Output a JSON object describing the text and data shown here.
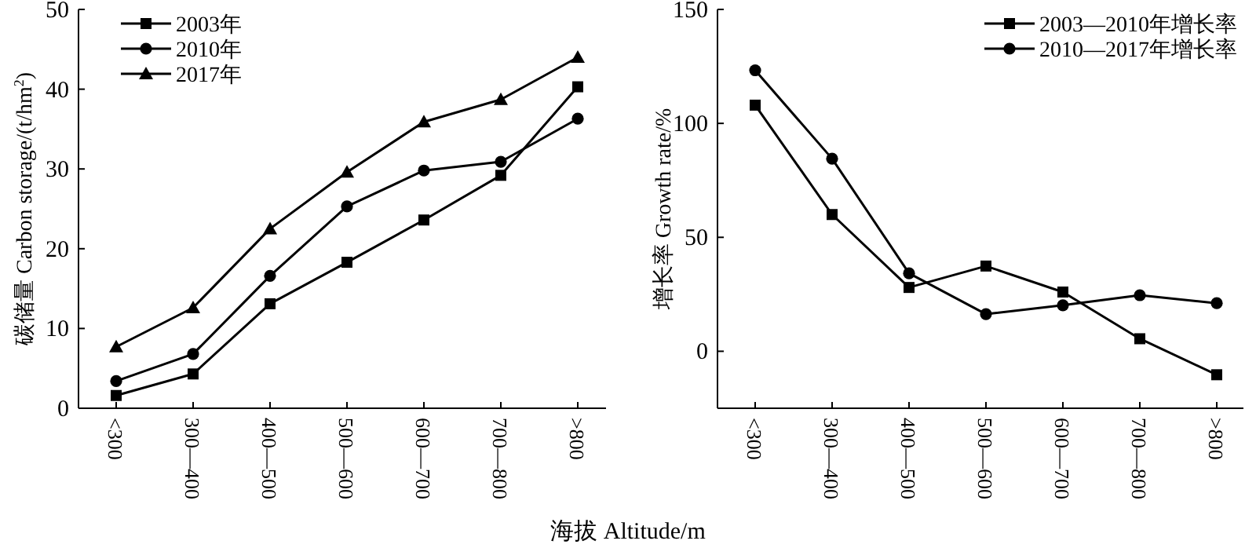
{
  "chart_data": [
    {
      "type": "line",
      "ylabel": "碳储量 Carbon storage/(t/hm$^{2}$)",
      "xlabel": "海拔 Altitude/m",
      "categories": [
        "<300",
        "300—400",
        "400—500",
        "500—600",
        "600—700",
        "700—800",
        ">800"
      ],
      "ylim": [
        0,
        50
      ],
      "yticks": [
        0,
        10,
        20,
        30,
        40,
        50
      ],
      "grid": false,
      "legend": "top left",
      "series": [
        {
          "name": "2003年",
          "color": "#000000",
          "marker": "square",
          "values": [
            1.6,
            4.3,
            13.1,
            18.3,
            23.6,
            29.2,
            40.3
          ]
        },
        {
          "name": "2010年",
          "color": "#000000",
          "marker": "circle",
          "values": [
            3.4,
            6.8,
            16.6,
            25.3,
            29.8,
            30.9,
            36.3
          ]
        },
        {
          "name": "2017年",
          "color": "#000000",
          "marker": "triangle",
          "values": [
            7.7,
            12.6,
            22.5,
            29.6,
            35.9,
            38.7,
            44.0
          ]
        }
      ]
    },
    {
      "type": "line",
      "ylabel": "增长率 Growth rate/%",
      "categories": [
        "<300",
        "300—400",
        "400—500",
        "500—600",
        "600—700",
        "700—800",
        ">800"
      ],
      "ylim": [
        -25,
        150
      ],
      "yticks": [
        0,
        50,
        100,
        150
      ],
      "grid": false,
      "legend": "top right",
      "series": [
        {
          "name": "2003—2010年增长率",
          "color": "#000000",
          "marker": "square",
          "values": [
            108,
            60,
            28,
            37.4,
            26,
            5.5,
            -10.3
          ]
        },
        {
          "name": "2010—2017年增长率",
          "color": "#000000",
          "marker": "circle",
          "values": [
            123.3,
            84.5,
            34.2,
            16.3,
            20.2,
            24.6,
            21.1
          ]
        }
      ]
    }
  ]
}
